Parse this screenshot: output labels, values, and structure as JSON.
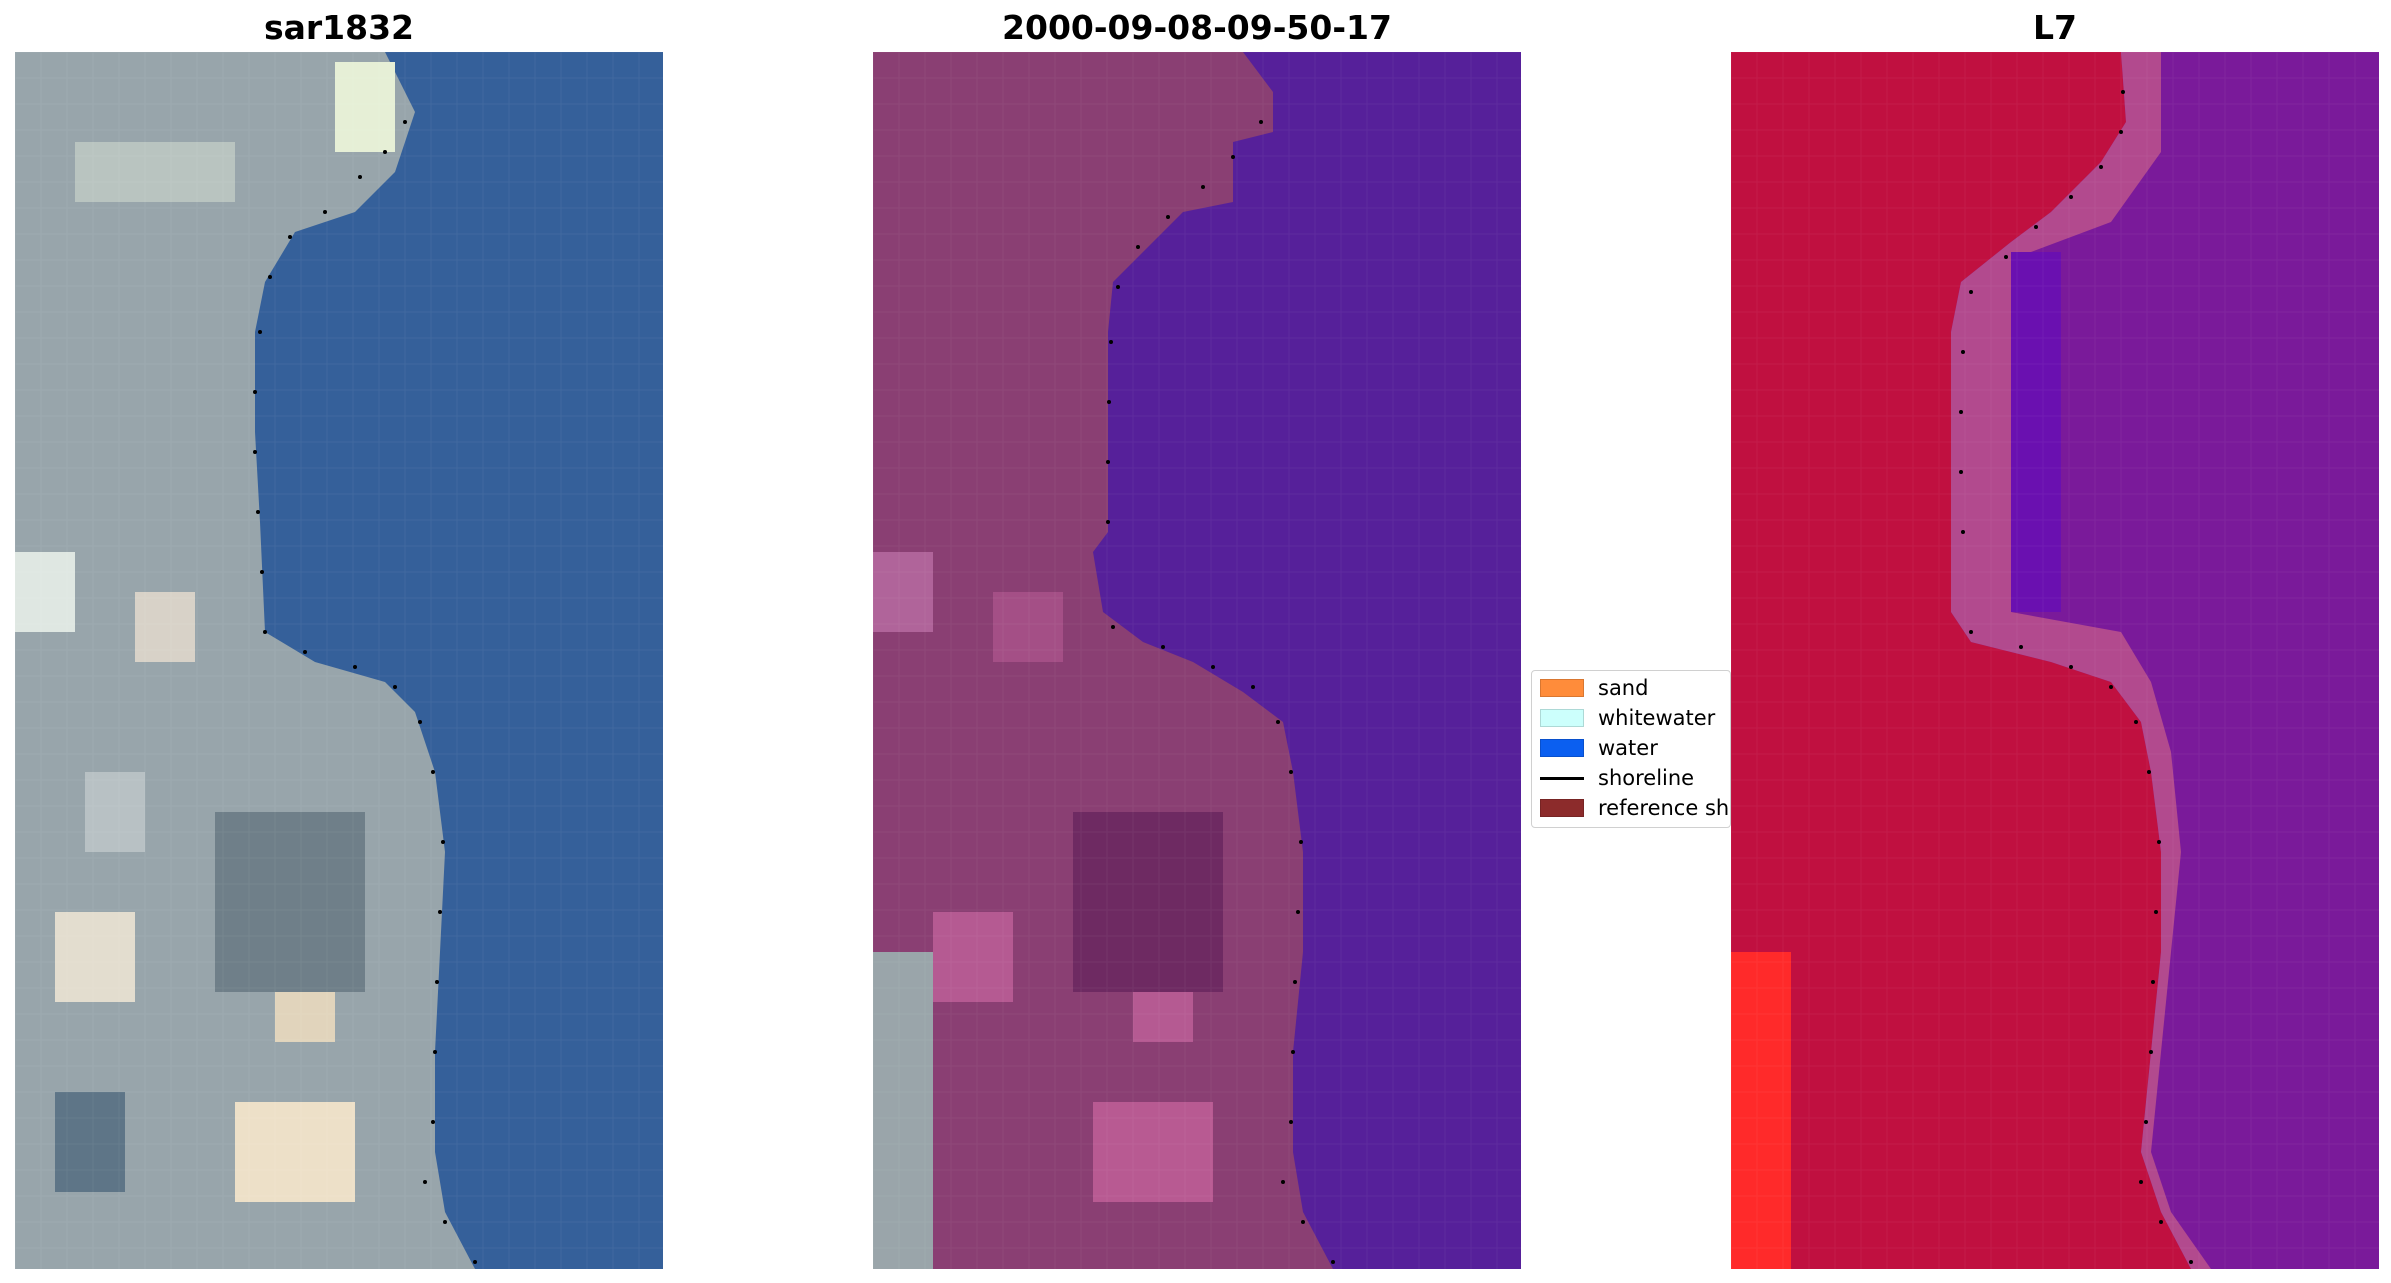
{
  "panels": [
    {
      "title": "sar1832",
      "scene": "rgb"
    },
    {
      "title": "2000-09-08-09-50-17",
      "scene": "classified"
    },
    {
      "title": "L7",
      "scene": "index"
    }
  ],
  "legend": {
    "items": [
      {
        "label": "sand",
        "kind": "patch",
        "color": "#ff8c3a"
      },
      {
        "label": "whitewater",
        "kind": "patch",
        "color": "#ccfffc"
      },
      {
        "label": "water",
        "kind": "patch",
        "color": "#0b5ff0"
      },
      {
        "label": "shoreline",
        "kind": "line",
        "color": "#000000"
      },
      {
        "label": "reference shoreline",
        "kind": "patch",
        "color": "#8c2b2b"
      }
    ]
  },
  "colors": {
    "ocean_rgb": "#35609a",
    "land_rgb": "#9aa7ad",
    "class_water": "#56209a",
    "class_land": "#8a3f73",
    "index_land": "#c01040",
    "index_water": "#7a1a9a",
    "index_bright_land": "#ff2a2a",
    "shoreline_dots": "#000000"
  }
}
